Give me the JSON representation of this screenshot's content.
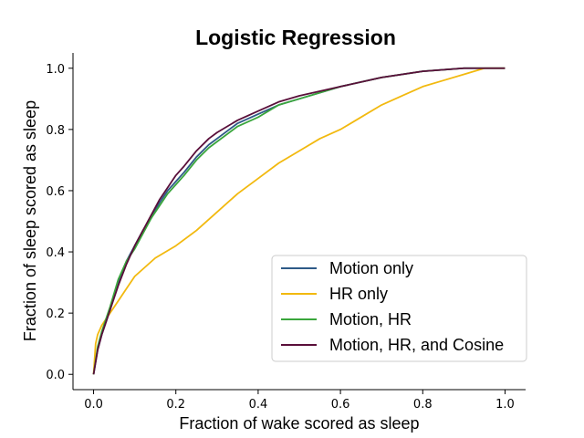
{
  "chart_data": {
    "type": "line",
    "title": "Logistic Regression",
    "xlabel": "Fraction of wake scored as sleep",
    "ylabel": "Fraction of sleep scored as sleep",
    "xlim": [
      -0.05,
      1.05
    ],
    "ylim": [
      -0.05,
      1.05
    ],
    "xticks": [
      0.0,
      0.2,
      0.4,
      0.6,
      0.8,
      1.0
    ],
    "yticks": [
      0.0,
      0.2,
      0.4,
      0.6,
      0.8,
      1.0
    ],
    "xtick_labels": [
      "0.0",
      "0.2",
      "0.4",
      "0.6",
      "0.8",
      "1.0"
    ],
    "ytick_labels": [
      "0.0",
      "0.2",
      "0.4",
      "0.6",
      "0.8",
      "1.0"
    ],
    "grid": false,
    "legend_position": "lower-right",
    "series": [
      {
        "name": "Motion only",
        "color": "#2e5a87",
        "x": [
          0,
          0.01,
          0.02,
          0.04,
          0.06,
          0.08,
          0.1,
          0.12,
          0.14,
          0.16,
          0.18,
          0.2,
          0.22,
          0.25,
          0.28,
          0.3,
          0.35,
          0.4,
          0.45,
          0.5,
          0.6,
          0.7,
          0.8,
          0.9,
          1.0
        ],
        "y": [
          0,
          0.08,
          0.13,
          0.21,
          0.3,
          0.37,
          0.42,
          0.47,
          0.51,
          0.56,
          0.6,
          0.63,
          0.66,
          0.71,
          0.75,
          0.77,
          0.82,
          0.85,
          0.88,
          0.9,
          0.94,
          0.97,
          0.99,
          1.0,
          1.0
        ]
      },
      {
        "name": "HR only",
        "color": "#f2b90f",
        "x": [
          0,
          0.005,
          0.01,
          0.02,
          0.04,
          0.06,
          0.08,
          0.1,
          0.15,
          0.2,
          0.25,
          0.3,
          0.35,
          0.4,
          0.45,
          0.5,
          0.55,
          0.6,
          0.65,
          0.7,
          0.75,
          0.8,
          0.85,
          0.9,
          0.95,
          1.0
        ],
        "y": [
          0,
          0.1,
          0.13,
          0.16,
          0.2,
          0.24,
          0.28,
          0.32,
          0.38,
          0.42,
          0.47,
          0.53,
          0.59,
          0.64,
          0.69,
          0.73,
          0.77,
          0.8,
          0.84,
          0.88,
          0.91,
          0.94,
          0.96,
          0.98,
          1.0,
          1.0
        ]
      },
      {
        "name": "Motion, HR",
        "color": "#3aa63c",
        "x": [
          0,
          0.01,
          0.02,
          0.04,
          0.06,
          0.08,
          0.1,
          0.12,
          0.14,
          0.16,
          0.18,
          0.2,
          0.22,
          0.25,
          0.28,
          0.3,
          0.35,
          0.4,
          0.45,
          0.5,
          0.6,
          0.7,
          0.8,
          0.9,
          1.0
        ],
        "y": [
          0,
          0.09,
          0.14,
          0.22,
          0.31,
          0.37,
          0.41,
          0.46,
          0.51,
          0.55,
          0.59,
          0.62,
          0.65,
          0.7,
          0.74,
          0.76,
          0.81,
          0.84,
          0.88,
          0.9,
          0.94,
          0.97,
          0.99,
          1.0,
          1.0
        ]
      },
      {
        "name": "Motion, HR, and Cosine",
        "color": "#5a0f3a",
        "x": [
          0,
          0.01,
          0.02,
          0.04,
          0.06,
          0.08,
          0.1,
          0.12,
          0.14,
          0.16,
          0.18,
          0.2,
          0.22,
          0.25,
          0.28,
          0.3,
          0.35,
          0.4,
          0.45,
          0.5,
          0.6,
          0.7,
          0.8,
          0.9,
          1.0
        ],
        "y": [
          0,
          0.08,
          0.13,
          0.21,
          0.29,
          0.36,
          0.42,
          0.47,
          0.52,
          0.57,
          0.61,
          0.65,
          0.68,
          0.73,
          0.77,
          0.79,
          0.83,
          0.86,
          0.89,
          0.91,
          0.94,
          0.97,
          0.99,
          1.0,
          1.0
        ]
      }
    ]
  }
}
